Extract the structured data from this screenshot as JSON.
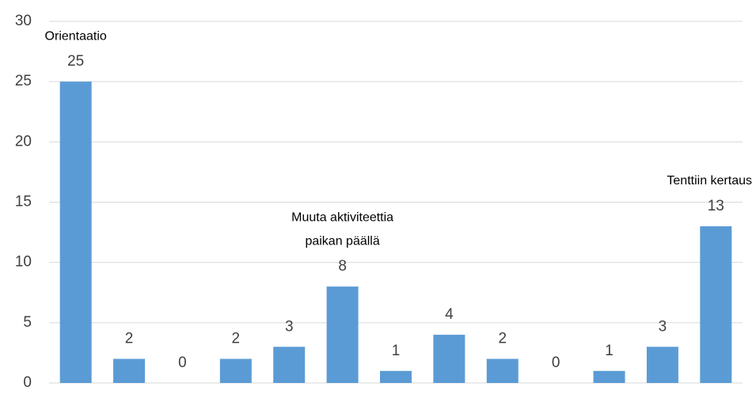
{
  "chart_data": {
    "type": "bar",
    "categories": [
      null,
      null,
      null,
      null,
      null,
      null,
      null,
      null,
      null,
      null,
      null,
      null,
      null
    ],
    "values": [
      25,
      2,
      0,
      2,
      3,
      8,
      1,
      4,
      2,
      0,
      1,
      3,
      13
    ],
    "annotations": [
      [
        "Orientaatio"
      ],
      null,
      null,
      null,
      null,
      [
        "Muuta aktiviteettia",
        "paikan päällä"
      ],
      null,
      null,
      null,
      null,
      null,
      null,
      [
        "Tenttiin kertaus"
      ]
    ],
    "color": "#5b9bd5",
    "ylim": [
      0,
      30
    ],
    "yticks": [
      0,
      5,
      10,
      15,
      20,
      25,
      30
    ],
    "grid": true
  }
}
